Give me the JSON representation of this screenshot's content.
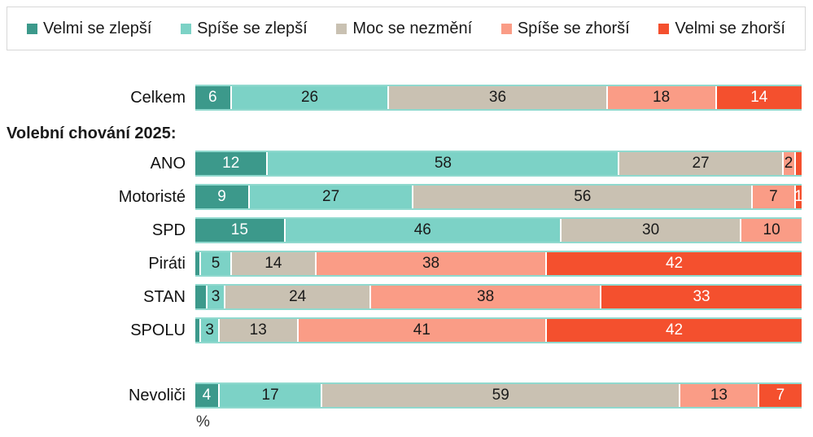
{
  "chart_data": {
    "type": "bar",
    "subtype": "horizontal-100pct-stacked",
    "unit": "%",
    "axis_label": "%",
    "section_label": "Volební chování 2025:",
    "legend_position": "top",
    "grid": false,
    "series_names": [
      "Velmi se zlepší",
      "Spíše se zlepší",
      "Moc se nezmění",
      "Spíše se zhorší",
      "Velmi se zhorší"
    ],
    "series_colors": [
      "#3c998b",
      "#7cd2c6",
      "#c9c1b2",
      "#fa9c86",
      "#f4502e"
    ],
    "series_label_text_colors": [
      "#ffffff",
      "#1a1a1a",
      "#1a1a1a",
      "#1a1a1a",
      "#ffffff"
    ],
    "rows": [
      {
        "label": "Celkem",
        "values": [
          6,
          26,
          36,
          18,
          14
        ],
        "display": [
          "6",
          "26",
          "36",
          "18",
          "14"
        ]
      },
      {
        "label": "ANO",
        "values": [
          12,
          58,
          27,
          2,
          1
        ],
        "display": [
          "12",
          "58",
          "27",
          "2",
          ""
        ]
      },
      {
        "label": "Motoristé",
        "values": [
          9,
          27,
          56,
          7,
          1
        ],
        "display": [
          "9",
          "27",
          "56",
          "7",
          "1"
        ]
      },
      {
        "label": "SPD",
        "values": [
          15,
          46,
          30,
          10,
          0
        ],
        "display": [
          "15",
          "46",
          "30",
          "10",
          ""
        ]
      },
      {
        "label": "Piráti",
        "values": [
          1,
          5,
          14,
          38,
          42
        ],
        "display": [
          "",
          "5",
          "14",
          "38",
          "42"
        ]
      },
      {
        "label": "STAN",
        "values": [
          2,
          3,
          24,
          38,
          33
        ],
        "display": [
          "",
          "3",
          "24",
          "38",
          "33"
        ]
      },
      {
        "label": "SPOLU",
        "values": [
          1,
          3,
          13,
          41,
          42
        ],
        "display": [
          "",
          "3",
          "13",
          "41",
          "42"
        ]
      },
      {
        "label": "Nevoliči",
        "values": [
          4,
          17,
          59,
          13,
          7
        ],
        "display": [
          "4",
          "17",
          "59",
          "13",
          "7"
        ]
      }
    ]
  }
}
